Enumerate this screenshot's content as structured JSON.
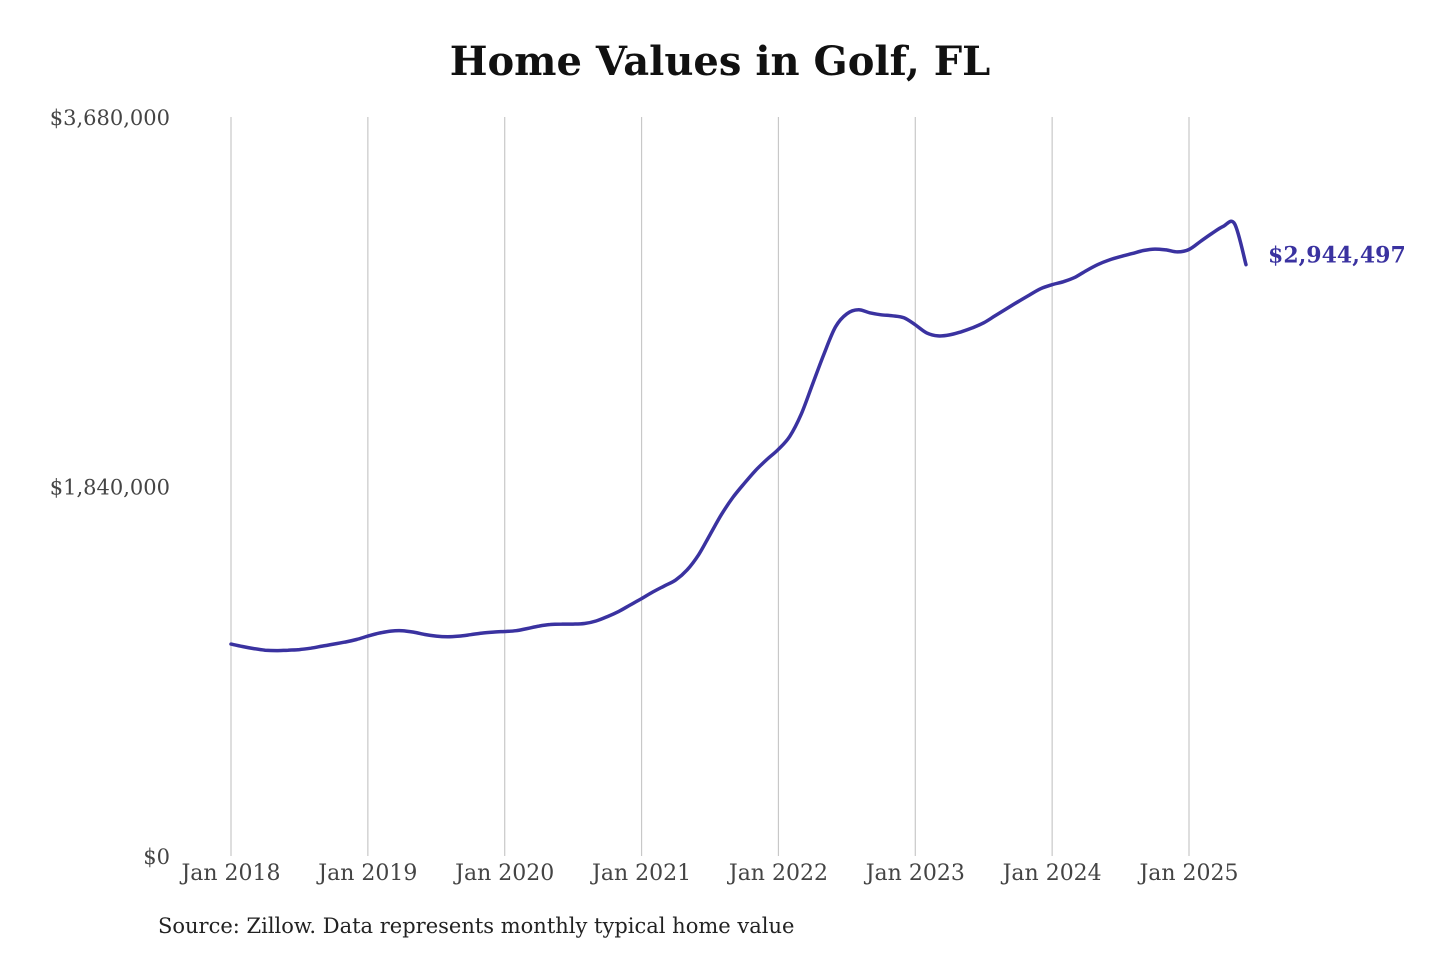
{
  "chart_data": {
    "type": "line",
    "title": "Home Values in Golf, FL",
    "xlabel": "",
    "ylabel": "",
    "ylim": [
      0,
      3680000
    ],
    "y_ticks": [
      {
        "value": 0,
        "label": "$0"
      },
      {
        "value": 1840000,
        "label": "$1,840,000"
      },
      {
        "value": 3680000,
        "label": "$3,680,000"
      }
    ],
    "x_ticks": [
      "Jan 2018",
      "Jan 2019",
      "Jan 2020",
      "Jan 2021",
      "Jan 2022",
      "Jan 2023",
      "Jan 2024",
      "Jan 2025"
    ],
    "x_start": "2018-01",
    "grid": "vertical",
    "line_color": "#3a32a0",
    "end_label": "$2,944,497",
    "series": [
      {
        "x": [
          "2018-01",
          "2018-02",
          "2018-03",
          "2018-04",
          "2018-05",
          "2018-06",
          "2018-07",
          "2018-08",
          "2018-09",
          "2018-10",
          "2018-11",
          "2018-12",
          "2019-01",
          "2019-02",
          "2019-03",
          "2019-04",
          "2019-05",
          "2019-06",
          "2019-07",
          "2019-08",
          "2019-09",
          "2019-10",
          "2019-11",
          "2019-12",
          "2020-01",
          "2020-02",
          "2020-03",
          "2020-04",
          "2020-05",
          "2020-06",
          "2020-07",
          "2020-08",
          "2020-09",
          "2020-10",
          "2020-11",
          "2020-12",
          "2021-01",
          "2021-02",
          "2021-03",
          "2021-04",
          "2021-05",
          "2021-06",
          "2021-07",
          "2021-08",
          "2021-09",
          "2021-10",
          "2021-11",
          "2021-12",
          "2022-01",
          "2022-02",
          "2022-03",
          "2022-04",
          "2022-05",
          "2022-06",
          "2022-07",
          "2022-08",
          "2022-09",
          "2022-10",
          "2022-11",
          "2022-12",
          "2023-01",
          "2023-02",
          "2023-03",
          "2023-04",
          "2023-05",
          "2023-06",
          "2023-07",
          "2023-08",
          "2023-09",
          "2023-10",
          "2023-11",
          "2023-12",
          "2024-01",
          "2024-02",
          "2024-03",
          "2024-04",
          "2024-05",
          "2024-06",
          "2024-07",
          "2024-08",
          "2024-09",
          "2024-10",
          "2024-11",
          "2024-12",
          "2025-01",
          "2025-02",
          "2025-03",
          "2025-04",
          "2025-05",
          "2025-06"
        ],
        "values": [
          1055000,
          1043000,
          1033000,
          1025000,
          1023000,
          1025000,
          1028000,
          1035000,
          1045000,
          1055000,
          1065000,
          1078000,
          1095000,
          1110000,
          1120000,
          1122000,
          1115000,
          1103000,
          1095000,
          1092000,
          1095000,
          1102000,
          1110000,
          1115000,
          1118000,
          1122000,
          1133000,
          1145000,
          1153000,
          1155000,
          1155000,
          1158000,
          1170000,
          1192000,
          1218000,
          1250000,
          1282000,
          1315000,
          1345000,
          1375000,
          1425000,
          1500000,
          1600000,
          1700000,
          1785000,
          1855000,
          1920000,
          1975000,
          2025000,
          2090000,
          2200000,
          2350000,
          2500000,
          2635000,
          2700000,
          2720000,
          2705000,
          2695000,
          2690000,
          2680000,
          2645000,
          2605000,
          2590000,
          2595000,
          2610000,
          2630000,
          2655000,
          2690000,
          2725000,
          2760000,
          2793000,
          2825000,
          2845000,
          2860000,
          2882000,
          2915000,
          2945000,
          2968000,
          2985000,
          3000000,
          3015000,
          3022000,
          3018000,
          3008000,
          3020000,
          3060000,
          3100000,
          3135000,
          3148000,
          2944497
        ]
      }
    ]
  },
  "footer": {
    "source": "Source: Zillow. Data represents monthly typical home value"
  }
}
